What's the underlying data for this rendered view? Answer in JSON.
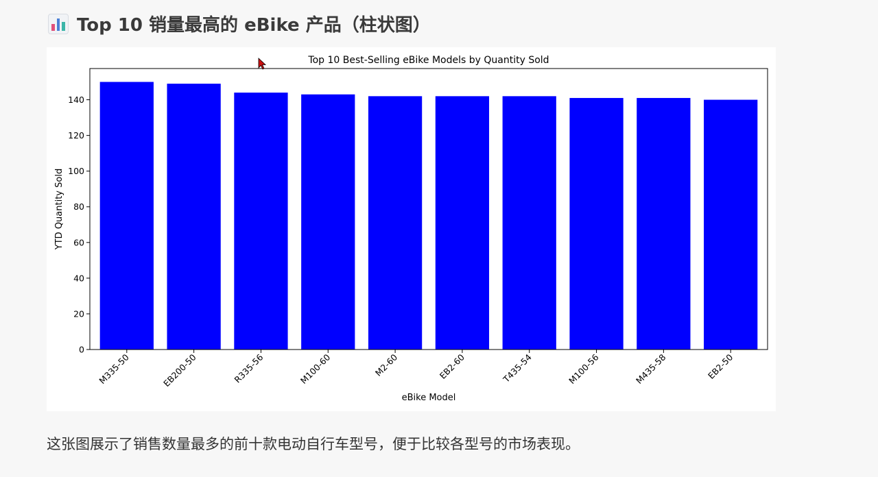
{
  "heading": {
    "icon": "bar-chart-emoji-icon",
    "text": "Top 10 销量最高的 eBike 产品（柱状图）"
  },
  "caption": "这张图展示了销售数量最多的前十款电动自行车型号，便于比较各型号的市场表现。",
  "chart_data": {
    "type": "bar",
    "title": "Top 10 Best-Selling eBike Models by Quantity Sold",
    "xlabel": "eBike Model",
    "ylabel": "YTD Quantity Sold",
    "categories": [
      "M335-50",
      "EB200-50",
      "R335-56",
      "M100-60",
      "M2-60",
      "EB2-60",
      "T435-54",
      "M100-56",
      "M435-58",
      "EB2-50"
    ],
    "values": [
      150,
      149,
      144,
      143,
      142,
      142,
      142,
      141,
      141,
      140
    ],
    "ylim": [
      0,
      157.5
    ],
    "yticks": [
      0,
      20,
      40,
      60,
      80,
      100,
      120,
      140
    ],
    "bar_color": "#0000ff",
    "grid": false,
    "legend": "none"
  }
}
